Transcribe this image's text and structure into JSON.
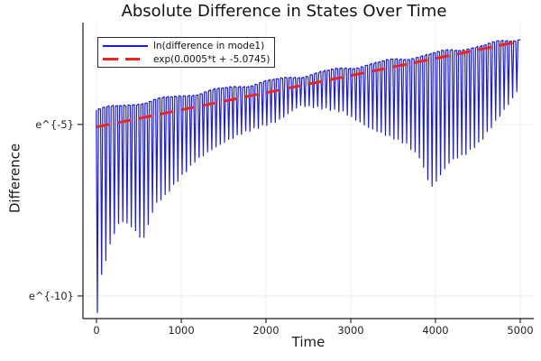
{
  "title": "Absolute Difference in States Over Time",
  "axes": {
    "xlabel": "Time",
    "ylabel": "Difference",
    "x_ticks": {
      "values": [
        0,
        1000,
        2000,
        3000,
        4000,
        5000
      ],
      "labels": [
        "0",
        "1000",
        "2000",
        "3000",
        "4000",
        "5000"
      ]
    },
    "y_ticks": {
      "values": [
        -5,
        -10
      ],
      "labels": [
        "e^{-5}",
        "e^{-10}"
      ]
    },
    "xlim": [
      -160,
      5160
    ],
    "ylim_ln": [
      -10.66,
      -2.03
    ],
    "spine_color": "#1a1a1a",
    "grid_color": "#ededed",
    "tick_label_color": "#262626"
  },
  "chart_data": {
    "type": "line",
    "title": "Absolute Difference in States Over Time",
    "xlabel": "Time",
    "ylabel": "Difference",
    "x_range": [
      0,
      5000
    ],
    "y_scale": "natural-log (labels e^{v})",
    "grid": "on",
    "legend_position": "top-left",
    "series": [
      {
        "name": "ln(difference in mode1)",
        "color": "#1a1ae8",
        "style": "oscillatory-solid",
        "line_width": 1.2,
        "oscillation_period_t": 50,
        "first_spike_t": 10,
        "upper_envelope_ln": [
          [
            0,
            -4.58
          ],
          [
            1000,
            -4.17
          ],
          [
            2000,
            -3.76
          ],
          [
            3000,
            -3.34
          ],
          [
            4000,
            -2.93
          ],
          [
            5000,
            -2.51
          ]
        ],
        "lower_envelope_ln": [
          [
            10,
            -10.45
          ],
          [
            60,
            -9.4
          ],
          [
            130,
            -8.75
          ],
          [
            200,
            -8.2
          ],
          [
            290,
            -7.78
          ],
          [
            430,
            -8.0
          ],
          [
            545,
            -8.4
          ],
          [
            690,
            -7.33
          ],
          [
            810,
            -7.07
          ],
          [
            990,
            -6.54
          ],
          [
            1170,
            -6.05
          ],
          [
            1340,
            -5.76
          ],
          [
            1520,
            -5.5
          ],
          [
            1730,
            -5.24
          ],
          [
            1950,
            -5.05
          ],
          [
            2140,
            -4.9
          ],
          [
            2400,
            -4.45
          ],
          [
            2600,
            -4.5
          ],
          [
            2900,
            -4.62
          ],
          [
            3220,
            -5.1
          ],
          [
            3650,
            -5.55
          ],
          [
            3810,
            -5.95
          ],
          [
            3950,
            -6.85
          ],
          [
            4180,
            -6.05
          ],
          [
            4360,
            -5.85
          ],
          [
            4530,
            -5.5
          ],
          [
            4710,
            -4.9
          ],
          [
            4850,
            -4.45
          ],
          [
            5000,
            -3.9
          ]
        ],
        "upper_ripple": {
          "amplitude_ln": 0.045,
          "period_t": 650
        }
      },
      {
        "name": "exp(0.0005*t + -5.0745)",
        "color": "#e8261d",
        "style": "dashed",
        "line_width": 3,
        "fit": {
          "slope": 0.0005,
          "intercept": -5.0745
        },
        "t_range": [
          0,
          5000
        ]
      }
    ]
  }
}
